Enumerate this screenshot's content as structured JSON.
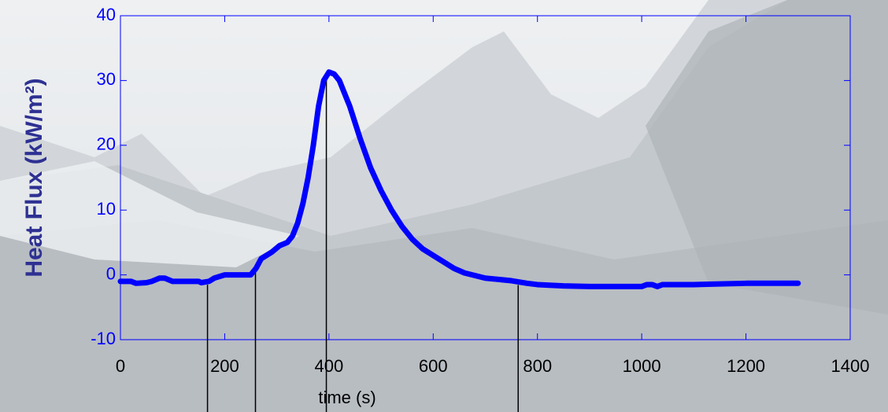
{
  "chart_data": {
    "type": "line",
    "ylabel": "Heat Flux (kW/m²)",
    "xlabel": "time (s)",
    "xlim": [
      0,
      1400
    ],
    "xticks": [
      0,
      200,
      400,
      600,
      800,
      1000,
      1200,
      1400
    ],
    "ylim": [
      -10,
      40
    ],
    "yticks": [
      -10,
      0,
      10,
      20,
      30,
      40
    ],
    "series": [
      {
        "color": "#0000ff",
        "x": [
          0,
          20,
          30,
          50,
          60,
          75,
          85,
          100,
          150,
          155,
          170,
          180,
          200,
          250,
          260,
          270,
          290,
          305,
          320,
          330,
          340,
          350,
          360,
          370,
          380,
          390,
          400,
          410,
          420,
          440,
          460,
          480,
          500,
          520,
          540,
          560,
          580,
          600,
          620,
          640,
          660,
          700,
          750,
          780,
          800,
          850,
          900,
          1000,
          1010,
          1020,
          1030,
          1040,
          1100,
          1200,
          1300
        ],
        "values": [
          -1,
          -1,
          -1.3,
          -1.2,
          -1,
          -0.5,
          -0.5,
          -1,
          -1,
          -1.2,
          -1,
          -0.5,
          0,
          0,
          1,
          2.5,
          3.5,
          4.5,
          5,
          6,
          8,
          11,
          15,
          20,
          26,
          30,
          31.3,
          31,
          30,
          26,
          21,
          16.5,
          13,
          10,
          7.5,
          5.5,
          4,
          3,
          2,
          1,
          0.3,
          -0.5,
          -0.9,
          -1.3,
          -1.5,
          -1.7,
          -1.8,
          -1.8,
          -1.5,
          -1.5,
          -1.8,
          -1.5,
          -1.5,
          -1.3,
          -1.3
        ]
      }
    ],
    "vlines": [
      167,
      259,
      395,
      763
    ]
  }
}
